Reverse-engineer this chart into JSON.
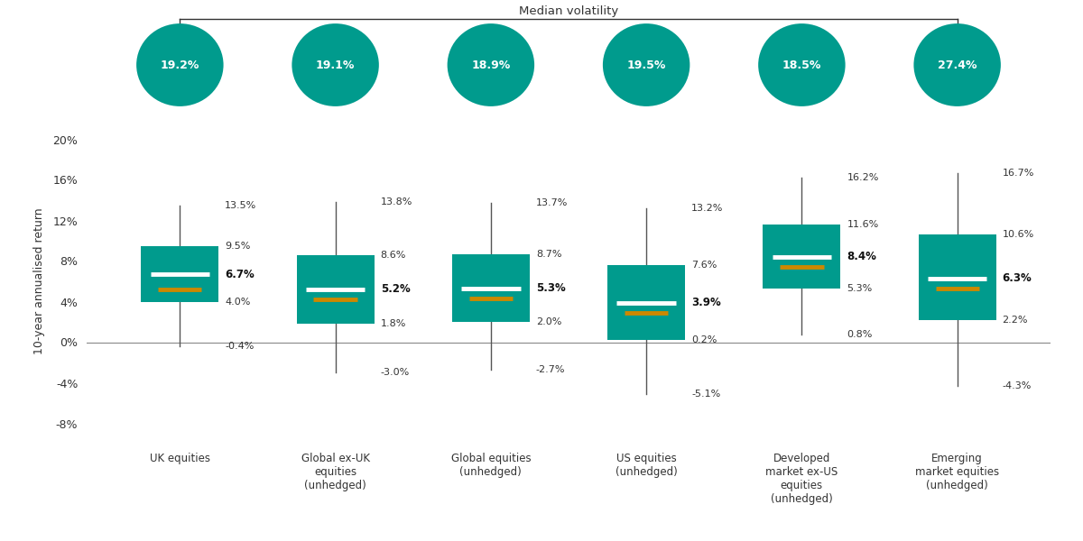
{
  "categories": [
    "UK equities",
    "Global ex-UK\nequities\n(unhedged)",
    "Global equities\n(unhedged)",
    "US equities\n(unhedged)",
    "Developed\nmarket ex-US\nequities\n(unhedged)",
    "Emerging\nmarket equities\n(unhedged)"
  ],
  "whisker_low": [
    -0.4,
    -3.0,
    -2.7,
    -5.1,
    0.8,
    -4.3
  ],
  "box_low": [
    4.0,
    1.8,
    2.0,
    0.2,
    5.3,
    2.2
  ],
  "median_white": [
    6.7,
    5.2,
    5.3,
    3.9,
    8.4,
    6.3
  ],
  "median_orange": [
    5.2,
    4.2,
    4.3,
    2.9,
    7.4,
    5.3
  ],
  "box_high": [
    9.5,
    8.6,
    8.7,
    7.6,
    11.6,
    10.6
  ],
  "whisker_high": [
    13.5,
    13.8,
    13.7,
    13.2,
    16.2,
    16.7
  ],
  "volatility": [
    "19.2%",
    "19.1%",
    "18.9%",
    "19.5%",
    "18.5%",
    "27.4%"
  ],
  "box_low_labels": [
    "4.0%",
    "1.8%",
    "2.0%",
    "0.2%",
    "5.3%",
    "2.2%"
  ],
  "box_high_labels": [
    "9.5%",
    "8.6%",
    "8.7%",
    "7.6%",
    "11.6%",
    "10.6%"
  ],
  "whisker_low_labels": [
    "-0.4%",
    "-3.0%",
    "-2.7%",
    "-5.1%",
    "0.8%",
    "-4.3%"
  ],
  "whisker_high_labels": [
    "13.5%",
    "13.8%",
    "13.7%",
    "13.2%",
    "16.2%",
    "16.7%"
  ],
  "median_labels": [
    "6.7%",
    "5.2%",
    "5.3%",
    "3.9%",
    "8.4%",
    "6.3%"
  ],
  "teal_color": "#009b8d",
  "orange_color": "#cc8800",
  "white_color": "#ffffff",
  "whisker_color": "#555555",
  "text_color": "#333333",
  "ylim": [
    -10,
    22
  ],
  "yticks": [
    -8,
    -4,
    0,
    4,
    8,
    12,
    16,
    20
  ],
  "ylabel": "10-year annualised return",
  "box_width": 0.5
}
